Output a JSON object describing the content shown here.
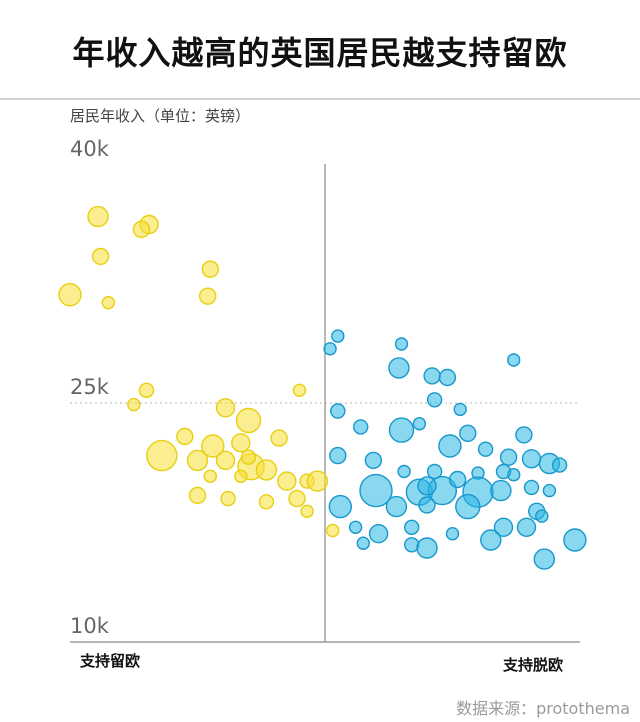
{
  "title": "年收入越高的英国居民越支持留欧",
  "source": "数据来源：protothema",
  "chart_data": {
    "type": "scatter",
    "ylabel": "居民年收入（单位：英镑）",
    "yticks": [
      "40k",
      "25k",
      "10k"
    ],
    "ylim": [
      10000,
      40000
    ],
    "xlim": [
      -1,
      1
    ],
    "xcategories": [
      "支持留欧",
      "支持脱欧"
    ],
    "reference_line_y": 25000,
    "colors": {
      "remain": "#f7e034",
      "leave": "#2ab6e4"
    },
    "series": [
      {
        "name": "支持留欧",
        "points": [
          [
            -0.89,
            36700,
            10
          ],
          [
            -0.69,
            36200,
            9
          ],
          [
            -0.72,
            35900,
            8
          ],
          [
            -0.88,
            34200,
            8
          ],
          [
            -0.45,
            33400,
            8
          ],
          [
            -1.0,
            31800,
            11
          ],
          [
            -0.85,
            31300,
            6
          ],
          [
            -0.46,
            31700,
            8
          ],
          [
            -0.7,
            25800,
            7
          ],
          [
            -0.75,
            24900,
            6
          ],
          [
            -0.39,
            24700,
            9
          ],
          [
            -0.1,
            25800,
            6
          ],
          [
            -0.3,
            23900,
            12
          ],
          [
            -0.55,
            22900,
            8
          ],
          [
            -0.44,
            22300,
            11
          ],
          [
            -0.33,
            22500,
            9
          ],
          [
            -0.18,
            22800,
            8
          ],
          [
            -0.64,
            21700,
            15
          ],
          [
            -0.5,
            21400,
            10
          ],
          [
            -0.39,
            21400,
            9
          ],
          [
            -0.29,
            21000,
            13
          ],
          [
            -0.23,
            20800,
            10
          ],
          [
            -0.15,
            20100,
            9
          ],
          [
            -0.45,
            20400,
            6
          ],
          [
            -0.33,
            20400,
            6
          ],
          [
            -0.07,
            20100,
            7
          ],
          [
            -0.11,
            19000,
            8
          ],
          [
            -0.07,
            18200,
            6
          ],
          [
            -0.03,
            20100,
            10
          ],
          [
            -0.5,
            19200,
            8
          ],
          [
            -0.38,
            19000,
            7
          ],
          [
            -0.23,
            18800,
            7
          ],
          [
            0.03,
            17000,
            6
          ],
          [
            -0.3,
            21600,
            7
          ]
        ]
      },
      {
        "name": "支持脱欧",
        "points": [
          [
            0.02,
            28400,
            6
          ],
          [
            0.05,
            29200,
            6
          ],
          [
            0.3,
            28700,
            6
          ],
          [
            0.29,
            27200,
            10
          ],
          [
            0.42,
            26700,
            8
          ],
          [
            0.48,
            26600,
            8
          ],
          [
            0.43,
            25200,
            7
          ],
          [
            0.53,
            24600,
            6
          ],
          [
            0.74,
            27700,
            6
          ],
          [
            0.05,
            24500,
            7
          ],
          [
            0.14,
            23500,
            7
          ],
          [
            0.3,
            23300,
            12
          ],
          [
            0.37,
            23700,
            6
          ],
          [
            0.56,
            23100,
            8
          ],
          [
            0.49,
            22300,
            11
          ],
          [
            0.78,
            23000,
            8
          ],
          [
            0.81,
            21500,
            9
          ],
          [
            0.72,
            21600,
            8
          ],
          [
            0.63,
            22100,
            7
          ],
          [
            0.88,
            21200,
            10
          ],
          [
            0.92,
            21100,
            7
          ],
          [
            0.74,
            20500,
            6
          ],
          [
            0.05,
            21700,
            8
          ],
          [
            0.19,
            21400,
            8
          ],
          [
            0.31,
            20700,
            6
          ],
          [
            0.43,
            20700,
            7
          ],
          [
            0.6,
            20600,
            6
          ],
          [
            0.7,
            20700,
            7
          ],
          [
            0.2,
            19500,
            16
          ],
          [
            0.37,
            19400,
            13
          ],
          [
            0.46,
            19500,
            14
          ],
          [
            0.6,
            19400,
            15
          ],
          [
            0.69,
            19500,
            10
          ],
          [
            0.81,
            19700,
            7
          ],
          [
            0.88,
            19500,
            6
          ],
          [
            0.06,
            18500,
            11
          ],
          [
            0.28,
            18500,
            10
          ],
          [
            0.4,
            18600,
            8
          ],
          [
            0.56,
            18500,
            12
          ],
          [
            0.83,
            18200,
            8
          ],
          [
            0.85,
            17900,
            6
          ],
          [
            0.12,
            17200,
            6
          ],
          [
            0.34,
            17200,
            7
          ],
          [
            0.7,
            17200,
            9
          ],
          [
            0.79,
            17200,
            9
          ],
          [
            0.21,
            16800,
            9
          ],
          [
            0.5,
            16800,
            6
          ],
          [
            0.65,
            16400,
            10
          ],
          [
            0.98,
            16400,
            11
          ],
          [
            0.15,
            16200,
            6
          ],
          [
            0.34,
            16100,
            7
          ],
          [
            0.4,
            15900,
            10
          ],
          [
            0.86,
            15200,
            10
          ],
          [
            0.4,
            19800,
            9
          ],
          [
            0.52,
            20200,
            8
          ]
        ]
      }
    ]
  }
}
